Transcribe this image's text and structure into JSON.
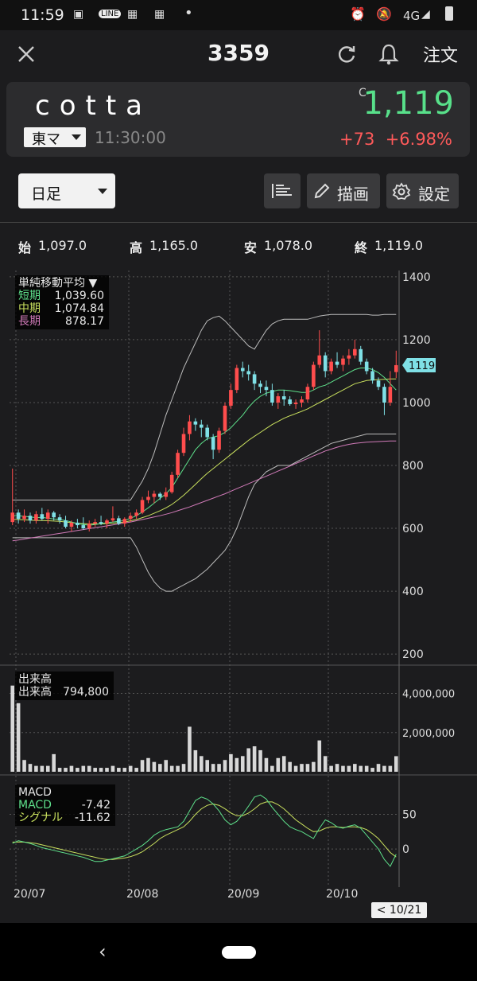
{
  "status_bar": {
    "time": "11:59",
    "network": "4G"
  },
  "header": {
    "title": "3359",
    "order_label": "注文"
  },
  "quote": {
    "name": "cotta",
    "market": "東マ",
    "time": "11:30:00",
    "price_flag": "C",
    "price": "1,119",
    "change": "+73",
    "change_pct": "+6.98%",
    "colors": {
      "up": "#58e08a",
      "down": "#ff5a5a"
    }
  },
  "toolbar": {
    "period": "日足",
    "draw_label": "描画",
    "settings_label": "設定"
  },
  "ohlc": {
    "open_label": "始",
    "open": "1,097.0",
    "high_label": "高",
    "high": "1,165.0",
    "low_label": "安",
    "low": "1,078.0",
    "close_label": "終",
    "close": "1,119.0"
  },
  "sma_legend": {
    "title": "単純移動平均",
    "short_label": "短期",
    "short": "1,039.60",
    "mid_label": "中期",
    "mid": "1,074.84",
    "long_label": "長期",
    "long": "878.17"
  },
  "volume_legend": {
    "title": "出来高",
    "label": "出来高",
    "value": "794,800"
  },
  "macd_legend": {
    "title": "MACD",
    "macd_label": "MACD",
    "macd": "-7.42",
    "signal_label": "シグナル",
    "signal": "-11.62"
  },
  "date_badge": "< 10/21 >",
  "chart_data": [
    {
      "type": "candlestick",
      "title": "",
      "price_axis_ticks": [
        "1400",
        "1200",
        "1000",
        "800",
        "600",
        "400",
        "200"
      ],
      "ylim": [
        180,
        1420
      ],
      "x_ticks": [
        "20/07",
        "20/08",
        "20/09",
        "20/10"
      ],
      "current_price_label": "1119",
      "candles": [
        [
          620,
          790,
          610,
          650
        ],
        [
          650,
          660,
          615,
          630
        ],
        [
          630,
          660,
          620,
          640
        ],
        [
          640,
          650,
          615,
          625
        ],
        [
          625,
          655,
          615,
          645
        ],
        [
          645,
          665,
          625,
          630
        ],
        [
          630,
          660,
          615,
          650
        ],
        [
          650,
          655,
          625,
          635
        ],
        [
          635,
          645,
          615,
          625
        ],
        [
          625,
          640,
          600,
          605
        ],
        [
          605,
          625,
          590,
          618
        ],
        [
          618,
          630,
          600,
          610
        ],
        [
          610,
          635,
          595,
          600
        ],
        [
          600,
          625,
          590,
          615
        ],
        [
          615,
          630,
          605,
          620
        ],
        [
          620,
          640,
          610,
          615
        ],
        [
          615,
          630,
          600,
          625
        ],
        [
          625,
          670,
          620,
          632
        ],
        [
          632,
          640,
          610,
          615
        ],
        [
          615,
          635,
          605,
          630
        ],
        [
          630,
          650,
          620,
          640
        ],
        [
          640,
          660,
          630,
          650
        ],
        [
          650,
          700,
          645,
          690
        ],
        [
          690,
          720,
          680,
          700
        ],
        [
          700,
          720,
          680,
          710
        ],
        [
          710,
          715,
          690,
          700
        ],
        [
          700,
          730,
          690,
          715
        ],
        [
          715,
          780,
          710,
          770
        ],
        [
          770,
          850,
          760,
          840
        ],
        [
          840,
          920,
          830,
          900
        ],
        [
          900,
          960,
          880,
          940
        ],
        [
          940,
          950,
          910,
          930
        ],
        [
          930,
          945,
          890,
          920
        ],
        [
          920,
          930,
          880,
          890
        ],
        [
          890,
          900,
          820,
          850
        ],
        [
          850,
          920,
          840,
          910
        ],
        [
          910,
          1000,
          900,
          990
        ],
        [
          990,
          1060,
          980,
          1040
        ],
        [
          1040,
          1120,
          1030,
          1110
        ],
        [
          1110,
          1130,
          1080,
          1100
        ],
        [
          1100,
          1120,
          1070,
          1090
        ],
        [
          1090,
          1100,
          1040,
          1060
        ],
        [
          1060,
          1070,
          1030,
          1050
        ],
        [
          1050,
          1070,
          1020,
          1040
        ],
        [
          1040,
          1060,
          990,
          1000
        ],
        [
          1000,
          1030,
          980,
          1020
        ],
        [
          1020,
          1040,
          990,
          1010
        ],
        [
          1010,
          1020,
          990,
          995
        ],
        [
          995,
          1010,
          980,
          1000
        ],
        [
          1000,
          1020,
          985,
          1010
        ],
        [
          1010,
          1060,
          1000,
          1050
        ],
        [
          1050,
          1130,
          1040,
          1120
        ],
        [
          1120,
          1230,
          1110,
          1150
        ],
        [
          1150,
          1160,
          1080,
          1100
        ],
        [
          1100,
          1140,
          1090,
          1130
        ],
        [
          1130,
          1160,
          1110,
          1120
        ],
        [
          1120,
          1150,
          1100,
          1140
        ],
        [
          1140,
          1170,
          1120,
          1150
        ],
        [
          1150,
          1200,
          1140,
          1170
        ],
        [
          1170,
          1180,
          1120,
          1130
        ],
        [
          1130,
          1140,
          1090,
          1100
        ],
        [
          1100,
          1110,
          1060,
          1070
        ],
        [
          1070,
          1080,
          1040,
          1050
        ],
        [
          1050,
          1060,
          960,
          1000
        ],
        [
          1000,
          1100,
          990,
          1050
        ],
        [
          1097,
          1165,
          1078,
          1119
        ]
      ],
      "sma_short": [
        640,
        640,
        638,
        636,
        634,
        635,
        632,
        630,
        628,
        625,
        620,
        615,
        612,
        610,
        612,
        615,
        618,
        620,
        622,
        625,
        632,
        640,
        652,
        665,
        680,
        695,
        710,
        730,
        760,
        790,
        820,
        850,
        870,
        885,
        890,
        895,
        905,
        920,
        940,
        960,
        985,
        1005,
        1020,
        1030,
        1035,
        1040,
        1040,
        1038,
        1035,
        1032,
        1032,
        1040,
        1050,
        1055,
        1065,
        1075,
        1085,
        1095,
        1105,
        1110,
        1110,
        1105,
        1095,
        1080,
        1060,
        1040
      ],
      "sma_mid": [
        628,
        628,
        627,
        626,
        625,
        625,
        624,
        623,
        622,
        620,
        618,
        616,
        615,
        614,
        614,
        614,
        615,
        616,
        618,
        620,
        624,
        628,
        634,
        640,
        648,
        656,
        665,
        676,
        690,
        705,
        722,
        740,
        758,
        775,
        790,
        805,
        820,
        835,
        850,
        865,
        880,
        893,
        905,
        918,
        930,
        940,
        950,
        958,
        965,
        972,
        980,
        990,
        1000,
        1010,
        1020,
        1030,
        1040,
        1050,
        1060,
        1065,
        1070,
        1072,
        1073,
        1074,
        1075,
        1075
      ],
      "sma_long": [
        560,
        563,
        566,
        569,
        572,
        575,
        578,
        581,
        584,
        587,
        590,
        593,
        596,
        599,
        602,
        605,
        608,
        611,
        614,
        617,
        620,
        624,
        628,
        632,
        636,
        640,
        645,
        650,
        656,
        662,
        668,
        675,
        682,
        689,
        696,
        703,
        710,
        718,
        726,
        734,
        742,
        750,
        758,
        766,
        774,
        782,
        790,
        798,
        806,
        814,
        822,
        830,
        838,
        846,
        852,
        858,
        863,
        867,
        870,
        872,
        874,
        875,
        876,
        877,
        878,
        878
      ],
      "band_upper": [
        690,
        690,
        690,
        690,
        690,
        690,
        690,
        690,
        690,
        690,
        690,
        690,
        690,
        690,
        690,
        690,
        690,
        690,
        690,
        690,
        690,
        720,
        750,
        790,
        840,
        900,
        960,
        1010,
        1060,
        1110,
        1150,
        1190,
        1230,
        1260,
        1270,
        1275,
        1260,
        1240,
        1220,
        1200,
        1180,
        1170,
        1200,
        1230,
        1250,
        1260,
        1265,
        1265,
        1265,
        1265,
        1265,
        1270,
        1275,
        1278,
        1280,
        1280,
        1280,
        1280,
        1280,
        1280,
        1280,
        1278,
        1278,
        1280,
        1280,
        1280
      ],
      "band_lower": [
        570,
        570,
        570,
        570,
        570,
        570,
        570,
        570,
        570,
        570,
        570,
        570,
        570,
        570,
        570,
        570,
        570,
        570,
        570,
        570,
        570,
        540,
        500,
        460,
        430,
        410,
        400,
        400,
        410,
        420,
        430,
        440,
        455,
        470,
        490,
        510,
        530,
        560,
        600,
        650,
        700,
        740,
        760,
        780,
        790,
        800,
        800,
        800,
        810,
        820,
        830,
        840,
        850,
        860,
        870,
        875,
        880,
        885,
        890,
        895,
        900,
        900,
        900,
        900,
        900,
        900
      ]
    },
    {
      "type": "bar",
      "title": "出来高",
      "axis_ticks": [
        "4,000,000",
        "2,000,000"
      ],
      "ylim": [
        0,
        5200000
      ],
      "values": [
        4400000,
        3500000,
        600000,
        400000,
        300000,
        300000,
        300000,
        900000,
        200000,
        200000,
        300000,
        200000,
        300000,
        300000,
        200000,
        200000,
        200000,
        300000,
        200000,
        200000,
        300000,
        200000,
        600000,
        700000,
        500000,
        400000,
        600000,
        300000,
        300000,
        400000,
        2300000,
        1100000,
        800000,
        600000,
        400000,
        400000,
        600000,
        900000,
        700000,
        800000,
        1200000,
        1300000,
        1100000,
        700000,
        300000,
        700000,
        800000,
        500000,
        300000,
        400000,
        400000,
        500000,
        1600000,
        800000,
        300000,
        400000,
        300000,
        300000,
        400000,
        300000,
        300000,
        200000,
        400000,
        300000,
        300000,
        794800
      ]
    },
    {
      "type": "line",
      "title": "MACD",
      "axis_ticks": [
        "50",
        "0"
      ],
      "ylim": [
        -55,
        100
      ],
      "series": [
        {
          "name": "MACD",
          "values": [
            8,
            12,
            10,
            8,
            5,
            2,
            0,
            -2,
            -4,
            -6,
            -8,
            -10,
            -12,
            -15,
            -18,
            -18,
            -16,
            -14,
            -12,
            -10,
            -5,
            0,
            5,
            12,
            20,
            25,
            28,
            30,
            32,
            40,
            55,
            70,
            75,
            72,
            65,
            55,
            42,
            35,
            40,
            50,
            62,
            75,
            78,
            72,
            60,
            50,
            40,
            32,
            28,
            25,
            20,
            15,
            30,
            42,
            38,
            32,
            30,
            33,
            35,
            30,
            20,
            10,
            0,
            -15,
            -25,
            -7.42
          ]
        },
        {
          "name": "シグナル",
          "values": [
            10,
            10,
            10,
            9,
            8,
            6,
            4,
            2,
            0,
            -2,
            -4,
            -6,
            -8,
            -10,
            -12,
            -14,
            -15,
            -15,
            -14,
            -13,
            -11,
            -8,
            -4,
            2,
            8,
            15,
            20,
            24,
            28,
            32,
            40,
            50,
            58,
            63,
            65,
            63,
            58,
            52,
            48,
            48,
            52,
            58,
            65,
            68,
            68,
            64,
            58,
            50,
            42,
            36,
            30,
            25,
            26,
            30,
            32,
            32,
            31,
            32,
            32,
            31,
            28,
            22,
            15,
            5,
            -5,
            -11.62
          ]
        }
      ]
    }
  ]
}
